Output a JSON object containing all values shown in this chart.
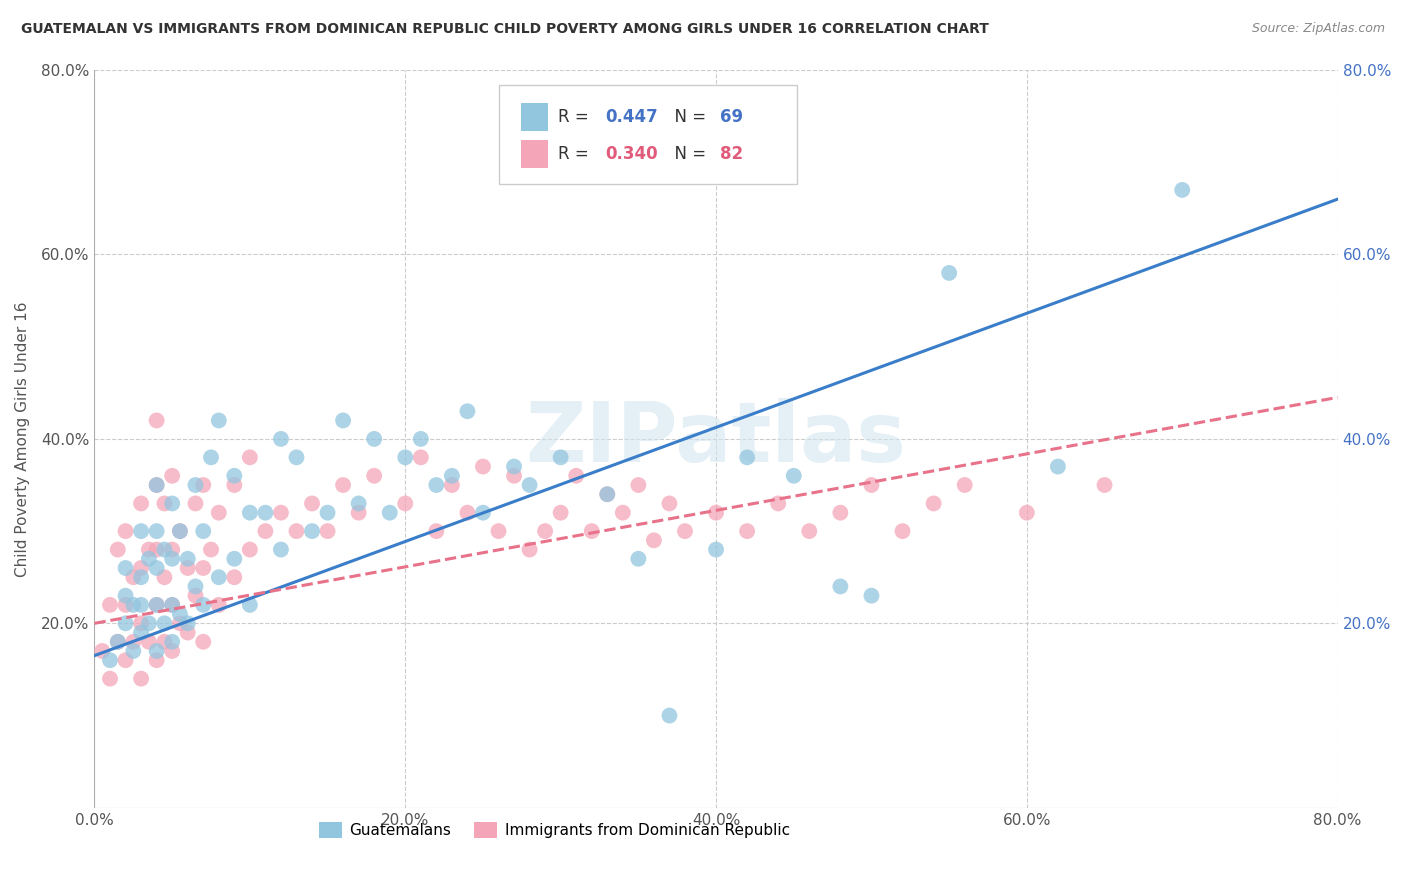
{
  "title": "GUATEMALAN VS IMMIGRANTS FROM DOMINICAN REPUBLIC CHILD POVERTY AMONG GIRLS UNDER 16 CORRELATION CHART",
  "source": "Source: ZipAtlas.com",
  "ylabel": "Child Poverty Among Girls Under 16",
  "xlim": [
    0.0,
    0.8
  ],
  "ylim": [
    0.0,
    0.8
  ],
  "xtick_vals": [
    0.0,
    0.2,
    0.4,
    0.6,
    0.8
  ],
  "ytick_vals": [
    0.2,
    0.4,
    0.6,
    0.8
  ],
  "blue_R": 0.447,
  "blue_N": 69,
  "pink_R": 0.34,
  "pink_N": 82,
  "blue_color": "#92c5de",
  "pink_color": "#f4a6b8",
  "blue_line_color": "#3a7dc9",
  "pink_line_color": "#e8728a",
  "legend_labels": [
    "Guatemalans",
    "Immigrants from Dominican Republic"
  ],
  "watermark": "ZIPatlas",
  "blue_line_x0": 0.0,
  "blue_line_y0": 0.165,
  "blue_line_x1": 0.8,
  "blue_line_y1": 0.66,
  "pink_line_x0": 0.0,
  "pink_line_y0": 0.2,
  "pink_line_x1": 0.8,
  "pink_line_y1": 0.445,
  "blue_scatter_x": [
    0.01,
    0.015,
    0.02,
    0.02,
    0.02,
    0.025,
    0.025,
    0.03,
    0.03,
    0.03,
    0.03,
    0.035,
    0.035,
    0.04,
    0.04,
    0.04,
    0.04,
    0.04,
    0.045,
    0.045,
    0.05,
    0.05,
    0.05,
    0.05,
    0.055,
    0.055,
    0.06,
    0.06,
    0.065,
    0.065,
    0.07,
    0.07,
    0.075,
    0.08,
    0.08,
    0.09,
    0.09,
    0.1,
    0.1,
    0.11,
    0.12,
    0.12,
    0.13,
    0.14,
    0.15,
    0.16,
    0.17,
    0.18,
    0.19,
    0.2,
    0.21,
    0.22,
    0.23,
    0.24,
    0.25,
    0.27,
    0.28,
    0.3,
    0.33,
    0.35,
    0.37,
    0.4,
    0.42,
    0.45,
    0.48,
    0.5,
    0.55,
    0.62,
    0.7
  ],
  "blue_scatter_y": [
    0.16,
    0.18,
    0.2,
    0.23,
    0.26,
    0.17,
    0.22,
    0.19,
    0.22,
    0.25,
    0.3,
    0.2,
    0.27,
    0.17,
    0.22,
    0.26,
    0.3,
    0.35,
    0.2,
    0.28,
    0.18,
    0.22,
    0.27,
    0.33,
    0.21,
    0.3,
    0.2,
    0.27,
    0.24,
    0.35,
    0.22,
    0.3,
    0.38,
    0.25,
    0.42,
    0.27,
    0.36,
    0.22,
    0.32,
    0.32,
    0.28,
    0.4,
    0.38,
    0.3,
    0.32,
    0.42,
    0.33,
    0.4,
    0.32,
    0.38,
    0.4,
    0.35,
    0.36,
    0.43,
    0.32,
    0.37,
    0.35,
    0.38,
    0.34,
    0.27,
    0.1,
    0.28,
    0.38,
    0.36,
    0.24,
    0.23,
    0.58,
    0.37,
    0.67
  ],
  "pink_scatter_x": [
    0.005,
    0.01,
    0.01,
    0.015,
    0.015,
    0.02,
    0.02,
    0.02,
    0.025,
    0.025,
    0.03,
    0.03,
    0.03,
    0.03,
    0.035,
    0.035,
    0.04,
    0.04,
    0.04,
    0.04,
    0.04,
    0.045,
    0.045,
    0.045,
    0.05,
    0.05,
    0.05,
    0.05,
    0.055,
    0.055,
    0.06,
    0.06,
    0.065,
    0.065,
    0.07,
    0.07,
    0.07,
    0.075,
    0.08,
    0.08,
    0.09,
    0.09,
    0.1,
    0.1,
    0.11,
    0.12,
    0.13,
    0.14,
    0.15,
    0.16,
    0.17,
    0.18,
    0.2,
    0.21,
    0.22,
    0.23,
    0.24,
    0.25,
    0.26,
    0.27,
    0.28,
    0.29,
    0.3,
    0.31,
    0.32,
    0.33,
    0.34,
    0.35,
    0.36,
    0.37,
    0.38,
    0.4,
    0.42,
    0.44,
    0.46,
    0.48,
    0.5,
    0.52,
    0.54,
    0.56,
    0.6,
    0.65
  ],
  "pink_scatter_y": [
    0.17,
    0.14,
    0.22,
    0.18,
    0.28,
    0.16,
    0.22,
    0.3,
    0.18,
    0.25,
    0.14,
    0.2,
    0.26,
    0.33,
    0.18,
    0.28,
    0.16,
    0.22,
    0.28,
    0.35,
    0.42,
    0.18,
    0.25,
    0.33,
    0.17,
    0.22,
    0.28,
    0.36,
    0.2,
    0.3,
    0.19,
    0.26,
    0.23,
    0.33,
    0.18,
    0.26,
    0.35,
    0.28,
    0.22,
    0.32,
    0.25,
    0.35,
    0.28,
    0.38,
    0.3,
    0.32,
    0.3,
    0.33,
    0.3,
    0.35,
    0.32,
    0.36,
    0.33,
    0.38,
    0.3,
    0.35,
    0.32,
    0.37,
    0.3,
    0.36,
    0.28,
    0.3,
    0.32,
    0.36,
    0.3,
    0.34,
    0.32,
    0.35,
    0.29,
    0.33,
    0.3,
    0.32,
    0.3,
    0.33,
    0.3,
    0.32,
    0.35,
    0.3,
    0.33,
    0.35,
    0.32,
    0.35
  ]
}
